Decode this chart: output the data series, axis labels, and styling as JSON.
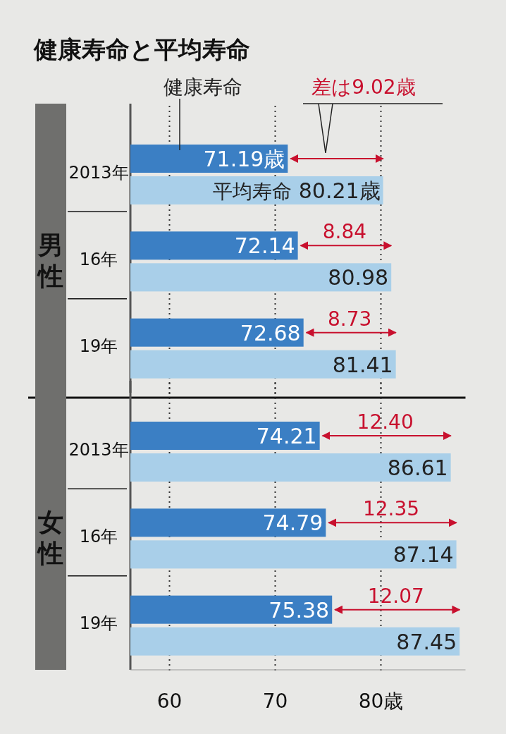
{
  "chart_data": [
    {
      "type": "bar",
      "orientation": "horizontal",
      "title": "健康寿命と平均寿命",
      "ylabel": "男性",
      "categories": [
        "2013年",
        "16年",
        "19年"
      ],
      "series": [
        {
          "name": "健康寿命",
          "color": "#3b7fc4",
          "values": [
            71.19,
            72.14,
            72.68
          ],
          "value_labels": [
            "71.19歳",
            "72.14",
            "72.68"
          ]
        },
        {
          "name": "平均寿命",
          "color": "#a9cfe9",
          "values": [
            80.21,
            80.98,
            81.41
          ],
          "value_labels": [
            "80.21歳",
            "80.98",
            "81.41"
          ]
        }
      ],
      "xlim": [
        56.3,
        88
      ],
      "xticks": [
        60,
        70,
        80
      ],
      "grid": "x",
      "legend": false,
      "tick_labels": "y",
      "annotations": [
        "差は9.02歳",
        "8.84",
        "8.73"
      ]
    },
    {
      "type": "bar",
      "orientation": "horizontal",
      "ylabel": "女性",
      "categories": [
        "2013年",
        "16年",
        "19年"
      ],
      "series": [
        {
          "color": "#3b7fc4",
          "values": [
            74.21,
            74.79,
            75.38
          ],
          "value_labels": [
            "74.21",
            "74.79",
            "75.38"
          ]
        },
        {
          "color": "#a9cfe9",
          "values": [
            86.61,
            87.14,
            87.45
          ],
          "value_labels": [
            "86.61",
            "87.14",
            "87.45"
          ]
        }
      ],
      "xlim": [
        56.3,
        88
      ],
      "xticks": [
        60,
        70,
        {
          "value": 80,
          "label": "80歳"
        }
      ],
      "grid": "x",
      "legend": false,
      "annotations": [
        "12.40",
        "12.35",
        "12.07"
      ]
    }
  ]
}
